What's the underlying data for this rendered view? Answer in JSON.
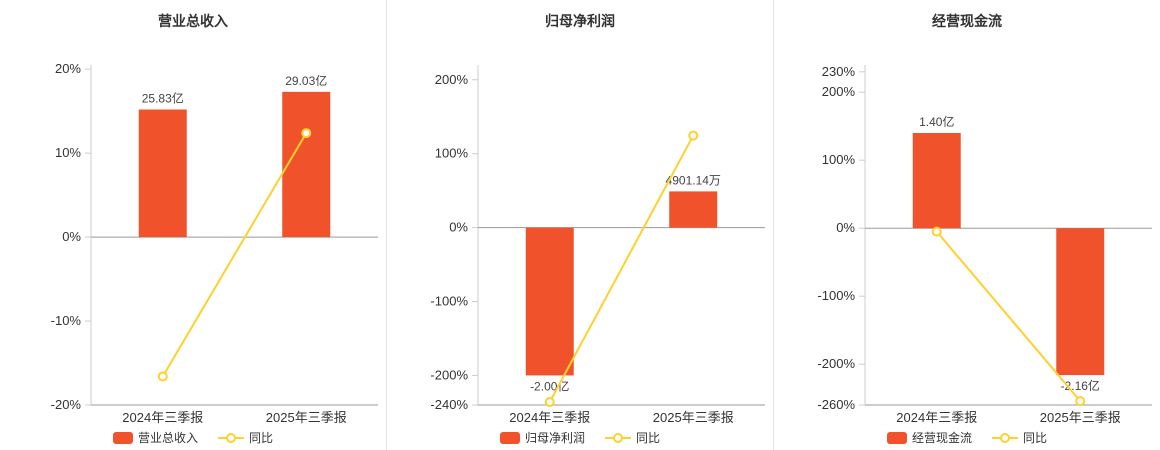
{
  "colors": {
    "bar": "#f0532b",
    "line": "#ffd02e",
    "axis_line": "#cccccc",
    "zero_line": "#999999",
    "divider": "#e4e4e4",
    "title_text": "#333333"
  },
  "chart_data": [
    {
      "type": "bar",
      "title": "营业总收入",
      "categories": [
        "2024年三季报",
        "2025年三季报"
      ],
      "bar_series": {
        "name": "营业总收入",
        "value_labels": [
          "25.83亿",
          "29.03亿"
        ],
        "plot_pct": [
          15.2,
          17.3
        ]
      },
      "line_series": {
        "name": "同比",
        "values_pct": [
          -16.6,
          12.39
        ]
      },
      "ylim_pct": [
        -20,
        20.5
      ],
      "yticks": [
        {
          "v": 20,
          "label": "20%"
        },
        {
          "v": 10,
          "label": "10%"
        },
        {
          "v": 0,
          "label": "0%"
        },
        {
          "v": -10,
          "label": "-10%"
        },
        {
          "v": -20,
          "label": "-20%"
        }
      ],
      "legend_position": "bottom",
      "grid": false
    },
    {
      "type": "bar",
      "title": "归母净利润",
      "categories": [
        "2024年三季报",
        "2025年三季报"
      ],
      "bar_series": {
        "name": "归母净利润",
        "value_labels": [
          "-2.00亿",
          "4901.14万"
        ],
        "plot_pct": [
          -200,
          49
        ]
      },
      "line_series": {
        "name": "同比",
        "values_pct": [
          -236,
          124.5
        ]
      },
      "ylim_pct": [
        -240,
        220
      ],
      "yticks": [
        {
          "v": 200,
          "label": "200%"
        },
        {
          "v": 100,
          "label": "100%"
        },
        {
          "v": 0,
          "label": "0%"
        },
        {
          "v": -100,
          "label": "-100%"
        },
        {
          "v": -200,
          "label": "-200%"
        },
        {
          "v": -240,
          "label": "-240%"
        }
      ],
      "legend_position": "bottom",
      "grid": false
    },
    {
      "type": "bar",
      "title": "经营现金流",
      "categories": [
        "2024年三季报",
        "2025年三季报"
      ],
      "bar_series": {
        "name": "经营现金流",
        "value_labels": [
          "1.40亿",
          "-2.16亿"
        ],
        "plot_pct": [
          140,
          -216
        ]
      },
      "line_series": {
        "name": "同比",
        "values_pct": [
          -5,
          -254.3
        ]
      },
      "ylim_pct": [
        -260,
        240
      ],
      "yticks": [
        {
          "v": 230,
          "label": "230%"
        },
        {
          "v": 200,
          "label": "200%"
        },
        {
          "v": 100,
          "label": "100%"
        },
        {
          "v": 0,
          "label": "0%"
        },
        {
          "v": -100,
          "label": "-100%"
        },
        {
          "v": -200,
          "label": "-200%"
        },
        {
          "v": -260,
          "label": "-260%"
        }
      ],
      "legend_position": "bottom",
      "grid": false
    }
  ]
}
